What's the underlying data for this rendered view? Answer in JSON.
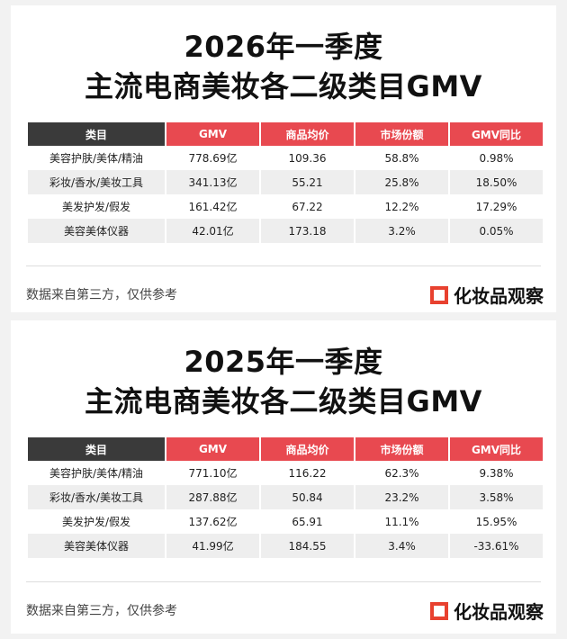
{
  "colors": {
    "accent_red": "#e84950",
    "header_dark": "#3a3a3a",
    "row_alt": "#eeeeee",
    "brand_red": "#e8412f"
  },
  "headers": [
    "类目",
    "GMV",
    "商品均价",
    "市场份额",
    "GMV同比"
  ],
  "cards": [
    {
      "title_line1": "2026年一季度",
      "title_line2": "主流电商美妆各二级类目GMV",
      "rows": [
        [
          "美容护肤/美体/精油",
          "778.69亿",
          "109.36",
          "58.8%",
          "0.98%"
        ],
        [
          "彩妆/香水/美妆工具",
          "341.13亿",
          "55.21",
          "25.8%",
          "18.50%"
        ],
        [
          "美发护发/假发",
          "161.42亿",
          "67.22",
          "12.2%",
          "17.29%"
        ],
        [
          "美容美体仪器",
          "42.01亿",
          "173.18",
          "3.2%",
          "0.05%"
        ]
      ],
      "footer_note": "数据来自第三方，仅供参考",
      "brand": "化妆品观察"
    },
    {
      "title_line1": "2025年一季度",
      "title_line2": "主流电商美妆各二级类目GMV",
      "rows": [
        [
          "美容护肤/美体/精油",
          "771.10亿",
          "116.22",
          "62.3%",
          "9.38%"
        ],
        [
          "彩妆/香水/美妆工具",
          "287.88亿",
          "50.84",
          "23.2%",
          "3.58%"
        ],
        [
          "美发护发/假发",
          "137.62亿",
          "65.91",
          "11.1%",
          "15.95%"
        ],
        [
          "美容美体仪器",
          "41.99亿",
          "184.55",
          "3.4%",
          "-33.61%"
        ]
      ],
      "footer_note": "数据来自第三方，仅供参考",
      "brand": "化妆品观察"
    }
  ]
}
